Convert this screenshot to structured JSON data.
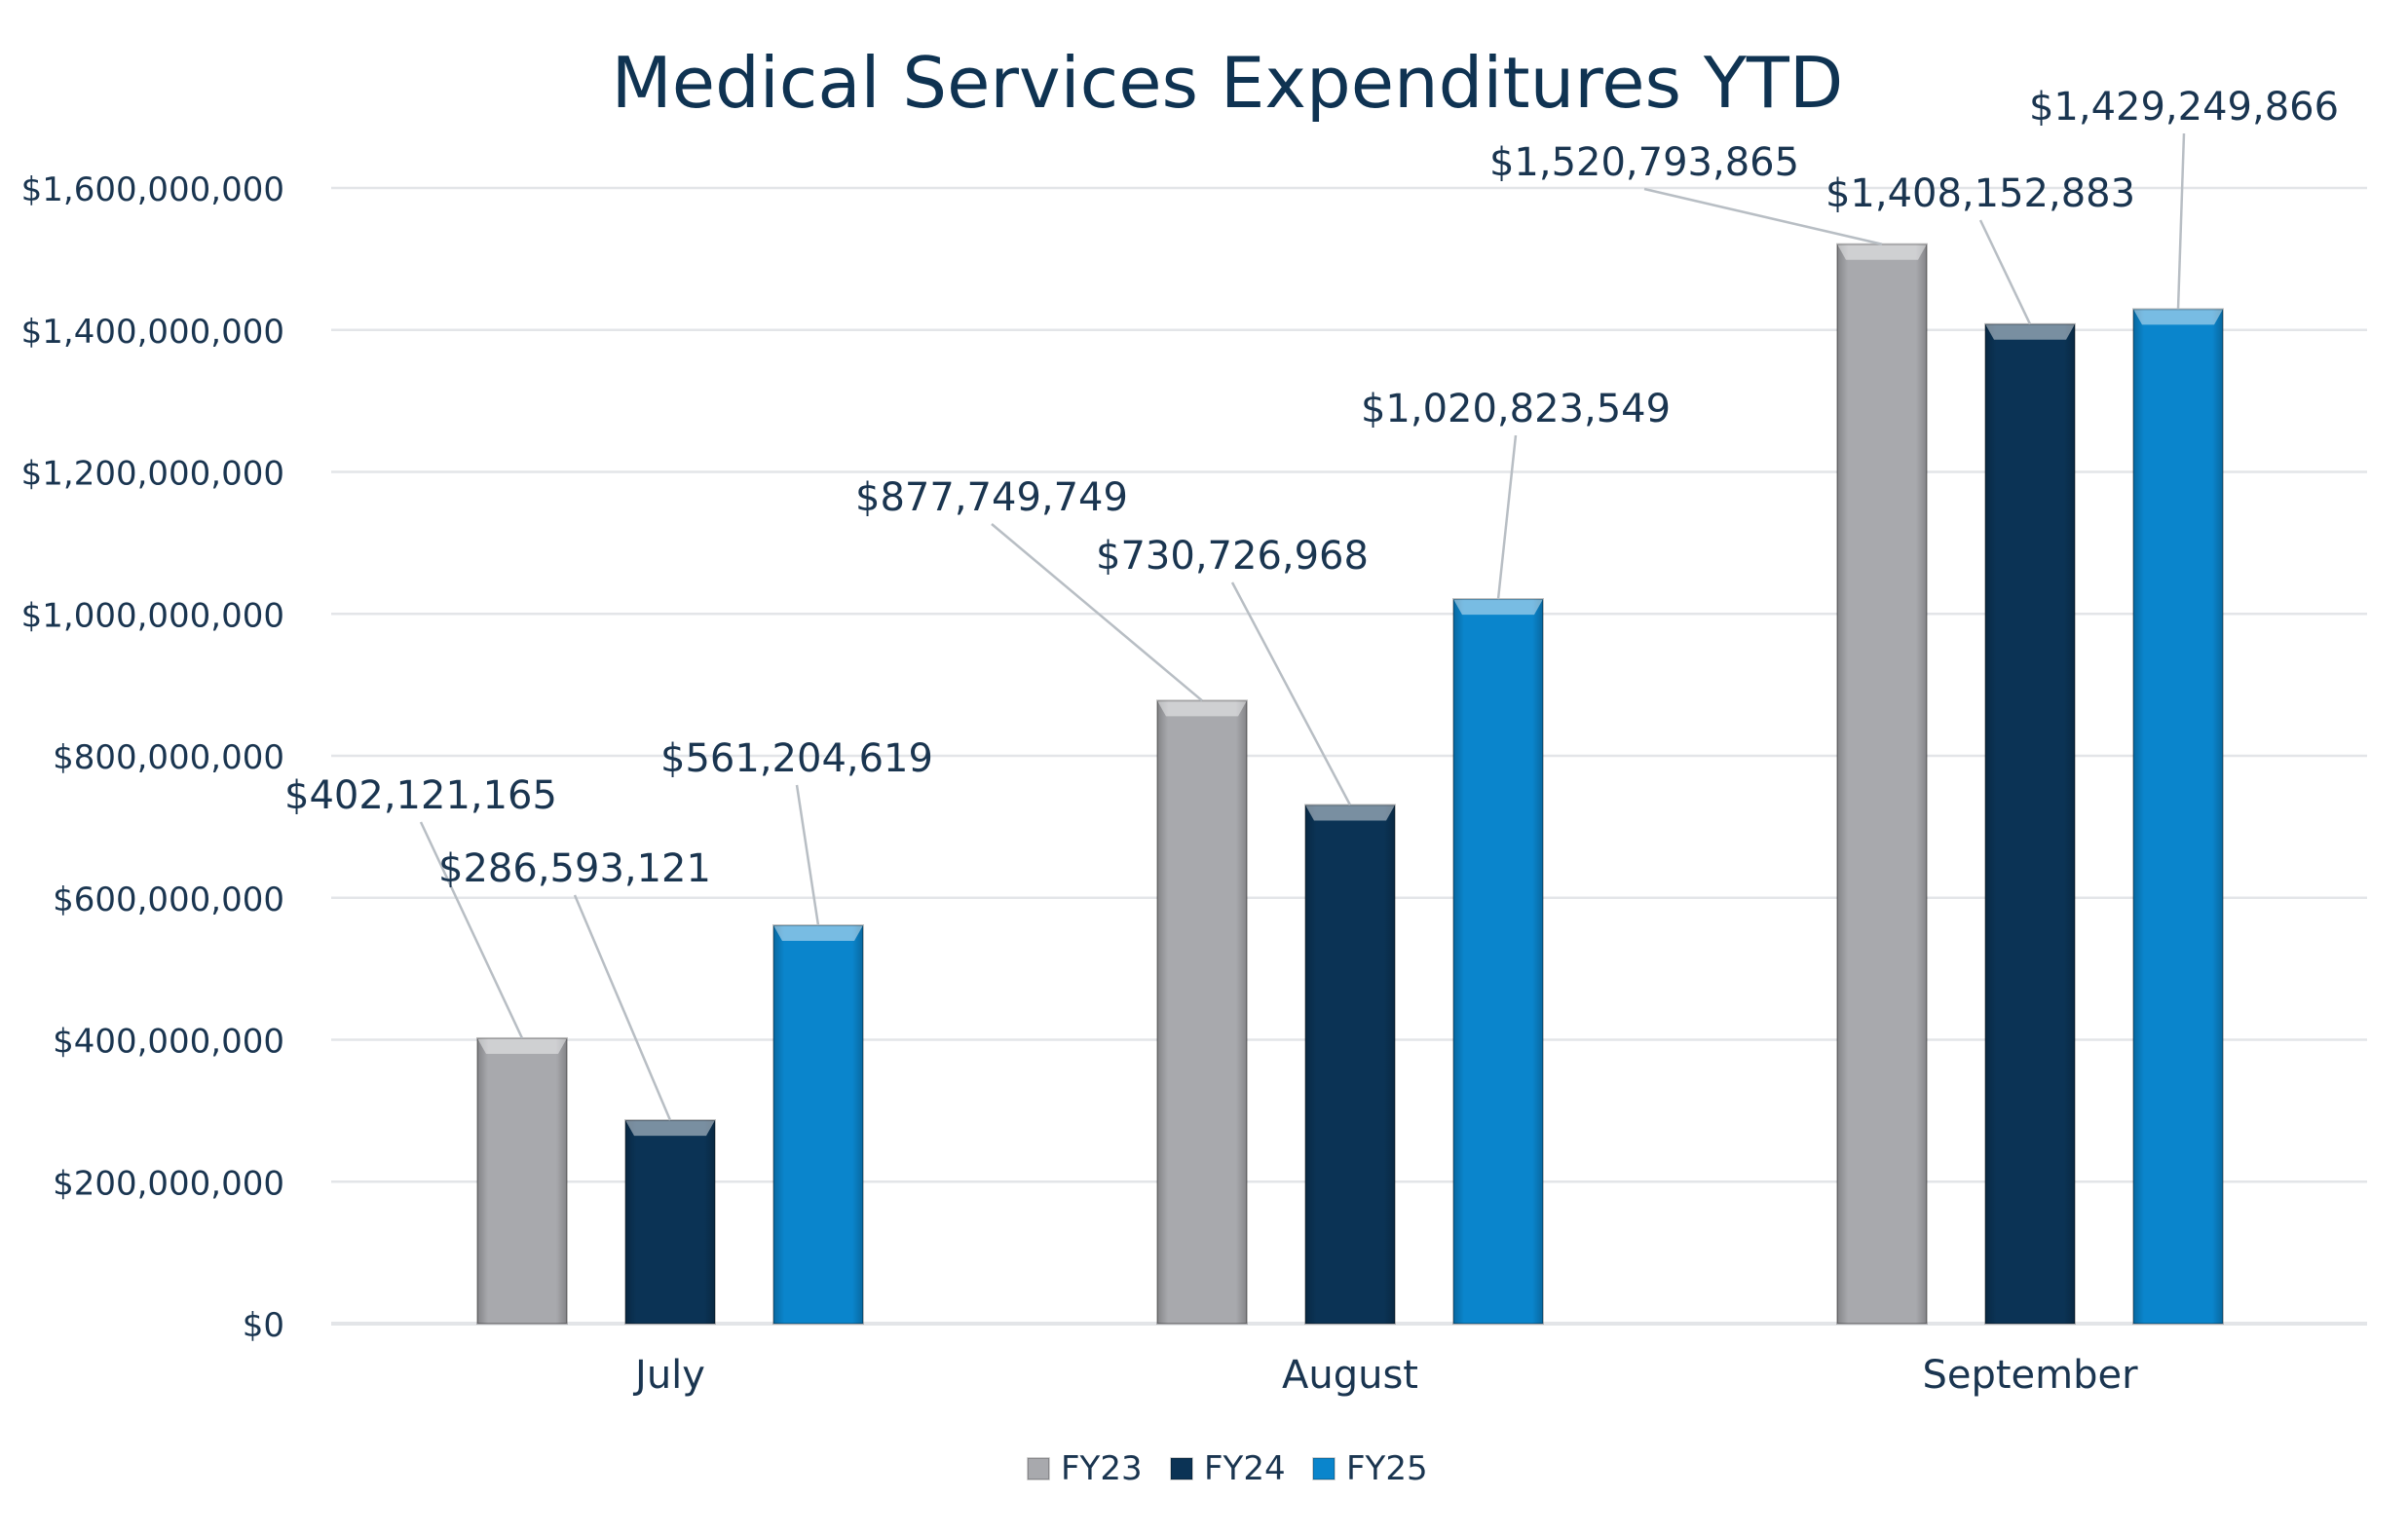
{
  "chart_data": {
    "type": "bar",
    "title": "Medical Services Expenditures YTD",
    "xlabel": "",
    "ylabel": "",
    "categories": [
      "July",
      "August",
      "September"
    ],
    "series": [
      {
        "name": "FY23",
        "color": "#A8A9AD",
        "values": [
          402121165,
          877749749,
          1520793865
        ],
        "labels": [
          "$402,121,165",
          "$877,749,749",
          "$1,520,793,865"
        ]
      },
      {
        "name": "FY24",
        "color": "#0B3355",
        "values": [
          286593121,
          730726968,
          1408152883
        ],
        "labels": [
          "$286,593,121",
          "$730,726,968",
          "$1,408,152,883"
        ]
      },
      {
        "name": "FY25",
        "color": "#0A85CC",
        "values": [
          561204619,
          1020823549,
          1429249866
        ],
        "labels": [
          "$561,204,619",
          "$1,020,823,549",
          "$1,429,249,866"
        ]
      }
    ],
    "ylim": [
      0,
      1600000000
    ],
    "yticks": [
      0,
      200000000,
      400000000,
      600000000,
      800000000,
      1000000000,
      1200000000,
      1400000000,
      1600000000
    ],
    "ytick_labels": [
      "$0",
      "$200,000,000",
      "$400,000,000",
      "$600,000,000",
      "$800,000,000",
      "$1,000,000,000",
      "$1,200,000,000",
      "$1,400,000,000",
      "$1,600,000,000"
    ],
    "grid": true,
    "legend_position": "bottom",
    "text_color": "#1A3550",
    "grid_color": "#E3E5E8",
    "leader_color": "#B8BEC4"
  }
}
